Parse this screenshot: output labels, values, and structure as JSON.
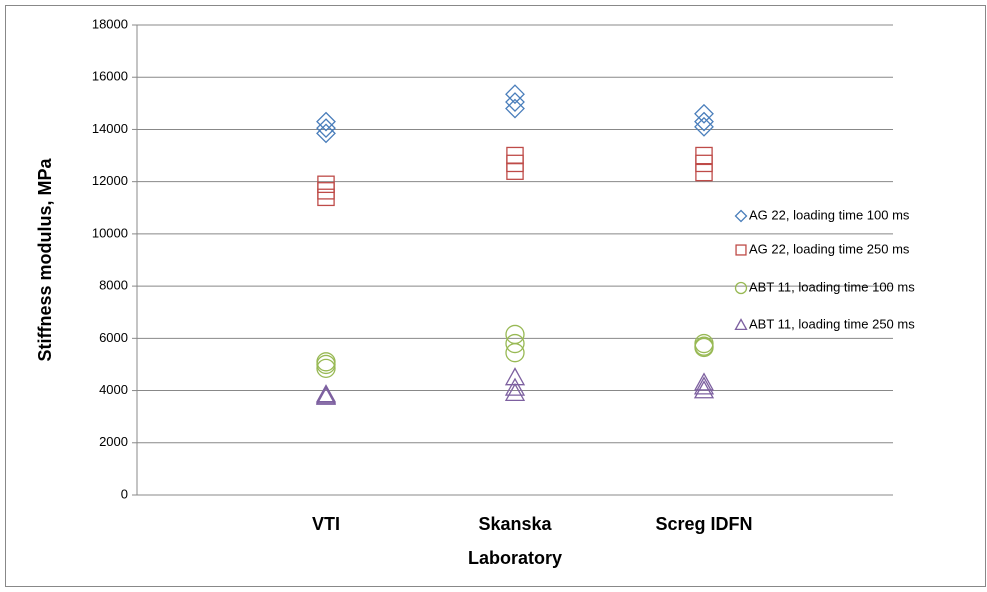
{
  "chart_data": {
    "type": "scatter",
    "y_label": "Stiffness modulus, MPa",
    "categories": [
      "VTI",
      "Skanska Laboratory",
      "Screg IDFN"
    ],
    "ylim": [
      0,
      18000
    ],
    "yticks": [
      0,
      2000,
      4000,
      6000,
      8000,
      10000,
      12000,
      14000,
      16000,
      18000
    ],
    "grid": true,
    "legend": "right",
    "series": [
      {
        "name": "AG 22, loading time 100 ms",
        "color": "#4a7ebb",
        "marker": "diamond",
        "values": [
          [
            14300,
            14050,
            13850
          ],
          [
            15350,
            15050,
            14800
          ],
          [
            14600,
            14300,
            14100
          ]
        ]
      },
      {
        "name": "AG 22, loading time 250 ms",
        "color": "#be4b48",
        "marker": "square",
        "values": [
          [
            11900,
            11650,
            11400
          ],
          [
            13000,
            12700,
            12400
          ],
          [
            13000,
            12700,
            12350
          ]
        ]
      },
      {
        "name": "ABT 11, loading time 100 ms",
        "color": "#98b954",
        "marker": "circle",
        "values": [
          [
            5100,
            5000,
            4850
          ],
          [
            6150,
            5800,
            5450
          ],
          [
            5800,
            5700,
            5650
          ]
        ]
      },
      {
        "name": "ABT 11, loading time 250 ms",
        "color": "#7d60a0",
        "marker": "triangle",
        "values": [
          [
            3850,
            3800,
            3750
          ],
          [
            4500,
            4100,
            3900
          ],
          [
            4300,
            4150,
            4000
          ]
        ]
      }
    ]
  }
}
